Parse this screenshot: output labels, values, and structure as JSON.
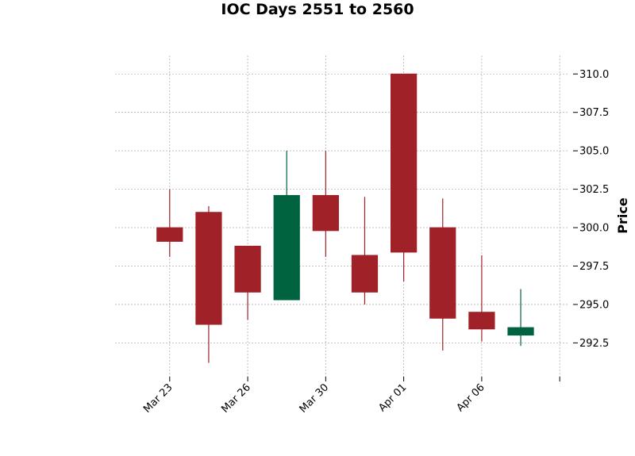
{
  "chart_data": {
    "type": "candlestick",
    "title": "IOC Days 2551 to 2560",
    "xlabel": "",
    "ylabel": "Price",
    "y_axis_side": "right",
    "ylim": [
      290.3,
      311.2
    ],
    "yticks": [
      292.5,
      295.0,
      297.5,
      300.0,
      302.5,
      305.0,
      307.5,
      310.0
    ],
    "ytick_labels": [
      "292.5",
      "295.0",
      "297.5",
      "300.0",
      "302.5",
      "305.0",
      "307.5",
      "310.0"
    ],
    "xticks": [
      {
        "pos": 0,
        "label": "Mar 23"
      },
      {
        "pos": 2,
        "label": "Mar 26"
      },
      {
        "pos": 4,
        "label": "Mar 30"
      },
      {
        "pos": 6,
        "label": "Apr 01"
      },
      {
        "pos": 8,
        "label": "Apr 06"
      },
      {
        "pos": 10,
        "label": ""
      }
    ],
    "xlim": [
      -1.4,
      10.2
    ],
    "grid": true,
    "up_color": "#006340",
    "down_color": "#a02128",
    "candles": [
      {
        "open": 300.0,
        "high": 302.5,
        "low": 298.1,
        "close": 299.1
      },
      {
        "open": 301.0,
        "high": 301.4,
        "low": 291.2,
        "close": 293.7
      },
      {
        "open": 298.8,
        "high": 298.8,
        "low": 294.0,
        "close": 295.8
      },
      {
        "open": 295.3,
        "high": 305.0,
        "low": 295.3,
        "close": 302.1
      },
      {
        "open": 302.1,
        "high": 305.0,
        "low": 298.1,
        "close": 299.8
      },
      {
        "open": 298.2,
        "high": 302.0,
        "low": 295.0,
        "close": 295.8
      },
      {
        "open": 310.0,
        "high": 310.0,
        "low": 296.5,
        "close": 298.4
      },
      {
        "open": 300.0,
        "high": 301.9,
        "low": 292.0,
        "close": 294.1
      },
      {
        "open": 294.5,
        "high": 298.2,
        "low": 292.6,
        "close": 293.4
      },
      {
        "open": 293.0,
        "high": 296.0,
        "low": 292.3,
        "close": 293.5
      }
    ]
  }
}
